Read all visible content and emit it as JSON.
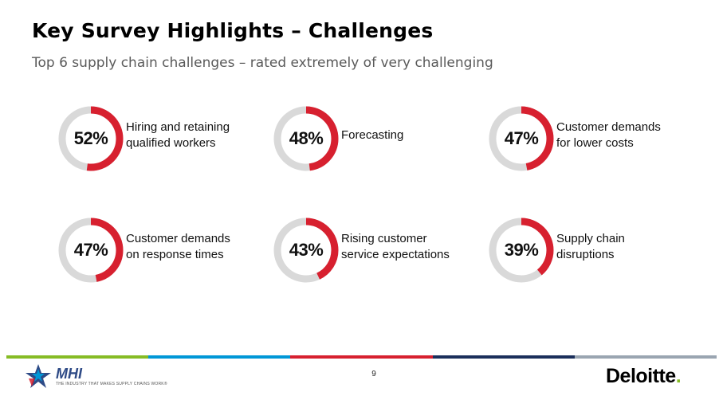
{
  "header": {
    "title": "Key Survey Highlights – Challenges",
    "subtitle": "Top 6 supply chain challenges – rated extremely of very challenging"
  },
  "colors": {
    "ring_fill": "#d7202f",
    "ring_track": "#d9d9d9",
    "footer": [
      "#86bc25",
      "#0097d7",
      "#d7202f",
      "#1b2f5b",
      "#9aa5b1"
    ],
    "deloitte_dot": "#86bc25"
  },
  "chart_data": {
    "type": "pie",
    "categories": [
      "Hiring and retaining qualified workers",
      "Forecasting",
      "Customer demands for lower costs",
      "Customer demands on response times",
      "Rising customer service expectations",
      "Supply chain disruptions"
    ],
    "values": [
      52,
      48,
      47,
      47,
      43,
      39
    ],
    "unit": "%"
  },
  "items": [
    {
      "pct_label": "52%",
      "label_line1": "Hiring and retaining",
      "label_line2": "qualified workers"
    },
    {
      "pct_label": "48%",
      "label_line1": "Forecasting",
      "label_line2": ""
    },
    {
      "pct_label": "47%",
      "label_line1": "Customer demands",
      "label_line2": "for lower costs"
    },
    {
      "pct_label": "47%",
      "label_line1": "Customer demands",
      "label_line2": "on response times"
    },
    {
      "pct_label": "43%",
      "label_line1": "Rising customer",
      "label_line2": "service expectations"
    },
    {
      "pct_label": "39%",
      "label_line1": "Supply chain",
      "label_line2": "disruptions"
    }
  ],
  "footer": {
    "mhi_name": "MHI",
    "mhi_tagline": "THE INDUSTRY THAT MAKES SUPPLY CHAINS WORK®",
    "page_number": "9",
    "deloitte_name": "Deloitte",
    "deloitte_dot": "."
  }
}
